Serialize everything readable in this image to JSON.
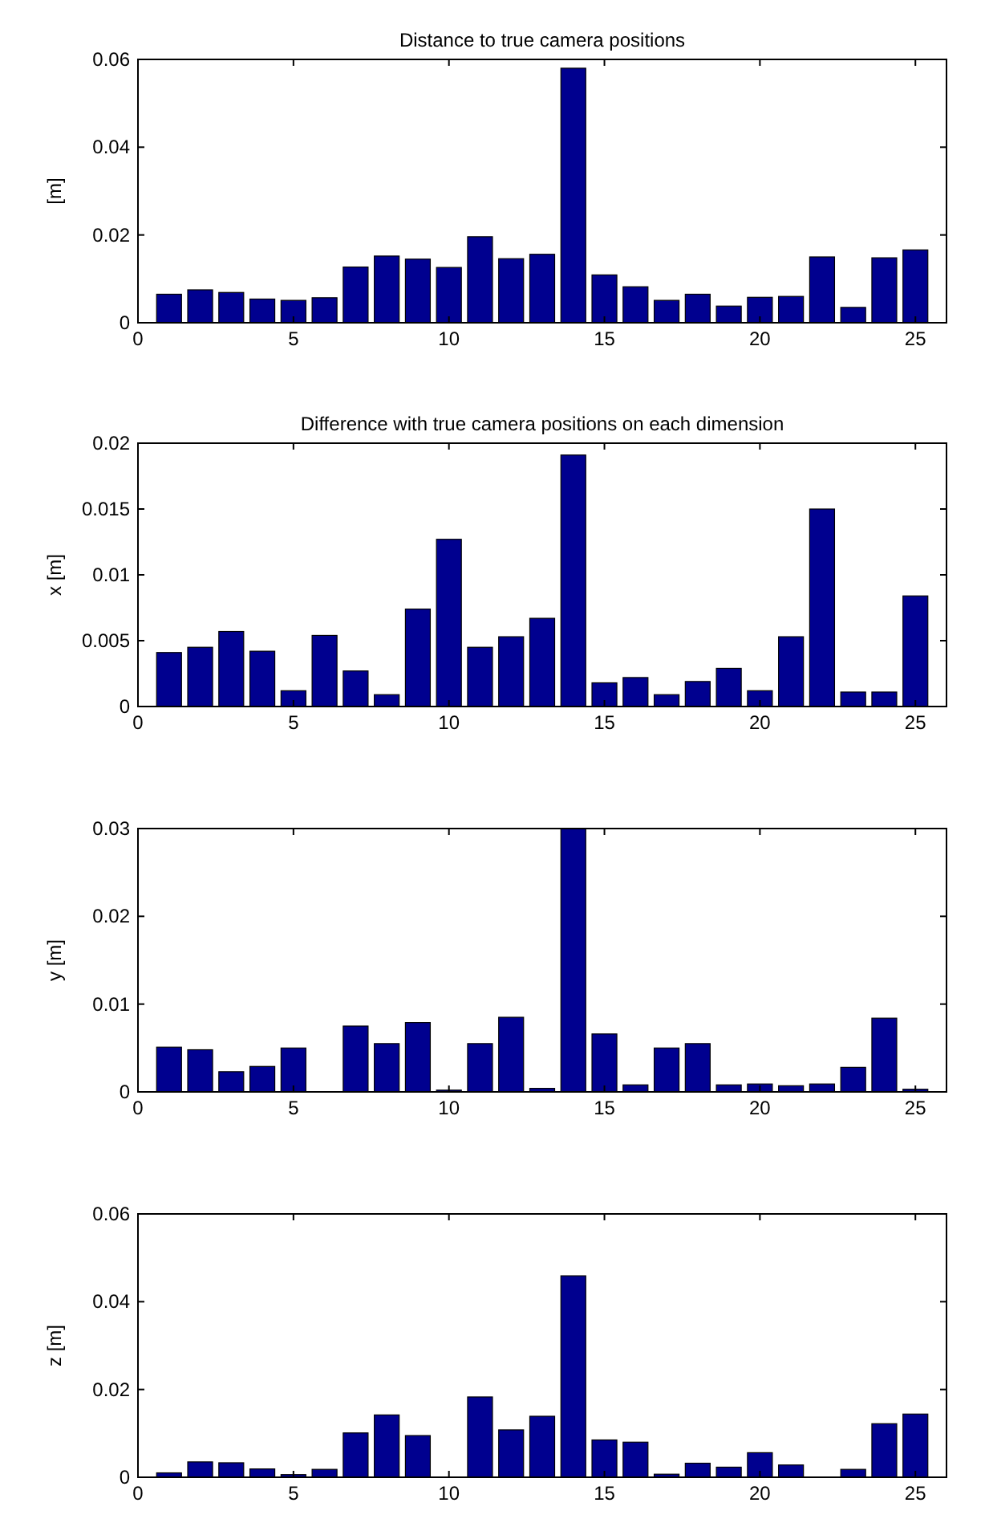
{
  "chart_data": [
    {
      "type": "bar",
      "title": "Distance to true camera positions",
      "ylabel": "[m]",
      "color": "#00008f",
      "x": [
        1,
        2,
        3,
        4,
        5,
        6,
        7,
        8,
        9,
        10,
        11,
        12,
        13,
        14,
        15,
        16,
        17,
        18,
        19,
        20,
        21,
        22,
        23,
        24,
        25
      ],
      "xlim": [
        0,
        26
      ],
      "xticks": [
        0,
        5,
        10,
        15,
        20,
        25
      ],
      "ylim": [
        0,
        0.06
      ],
      "yticks": [
        0,
        0.02,
        0.04,
        0.06
      ],
      "grid": false,
      "legend": false,
      "values": [
        0.0065,
        0.0075,
        0.0069,
        0.0054,
        0.0051,
        0.0057,
        0.0127,
        0.0152,
        0.0145,
        0.0126,
        0.0196,
        0.0146,
        0.0156,
        0.058,
        0.0109,
        0.0082,
        0.0051,
        0.0065,
        0.0038,
        0.0058,
        0.006,
        0.015,
        0.0035,
        0.0148,
        0.0166
      ]
    },
    {
      "type": "bar",
      "title": "Difference with true camera positions on each dimension",
      "ylabel": "x [m]",
      "color": "#00008f",
      "x": [
        1,
        2,
        3,
        4,
        5,
        6,
        7,
        8,
        9,
        10,
        11,
        12,
        13,
        14,
        15,
        16,
        17,
        18,
        19,
        20,
        21,
        22,
        23,
        24,
        25
      ],
      "xlim": [
        0,
        26
      ],
      "xticks": [
        0,
        5,
        10,
        15,
        20,
        25
      ],
      "ylim": [
        0,
        0.02
      ],
      "yticks": [
        0,
        0.005,
        0.01,
        0.015,
        0.02
      ],
      "grid": false,
      "legend": false,
      "values": [
        0.0041,
        0.0045,
        0.0057,
        0.0042,
        0.0012,
        0.0054,
        0.0027,
        0.0009,
        0.0074,
        0.0127,
        0.0045,
        0.0053,
        0.0067,
        0.0191,
        0.0018,
        0.0022,
        0.0009,
        0.0019,
        0.0029,
        0.0012,
        0.0053,
        0.015,
        0.0011,
        0.0011,
        0.0084
      ]
    },
    {
      "type": "bar",
      "ylabel": "y [m]",
      "color": "#00008f",
      "x": [
        1,
        2,
        3,
        4,
        5,
        6,
        7,
        8,
        9,
        10,
        11,
        12,
        13,
        14,
        15,
        16,
        17,
        18,
        19,
        20,
        21,
        22,
        23,
        24,
        25
      ],
      "xlim": [
        0,
        26
      ],
      "xticks": [
        0,
        5,
        10,
        15,
        20,
        25
      ],
      "ylim": [
        0,
        0.03
      ],
      "yticks": [
        0,
        0.01,
        0.02,
        0.03
      ],
      "grid": false,
      "legend": false,
      "values": [
        0.0051,
        0.0048,
        0.0023,
        0.0029,
        0.005,
        0,
        0.0075,
        0.0055,
        0.0079,
        0.0002,
        0.0055,
        0.0085,
        0.0004,
        0.03,
        0.0066,
        0.0008,
        0.005,
        0.0055,
        0.0008,
        0.0009,
        0.0007,
        0.0009,
        0.0028,
        0.0084,
        0.0003
      ]
    },
    {
      "type": "bar",
      "ylabel": "z [m]",
      "color": "#00008f",
      "x": [
        1,
        2,
        3,
        4,
        5,
        6,
        7,
        8,
        9,
        10,
        11,
        12,
        13,
        14,
        15,
        16,
        17,
        18,
        19,
        20,
        21,
        22,
        23,
        24,
        25
      ],
      "xlim": [
        0,
        26
      ],
      "xticks": [
        0,
        5,
        10,
        15,
        20,
        25
      ],
      "ylim": [
        0,
        0.06
      ],
      "yticks": [
        0,
        0.02,
        0.04,
        0.06
      ],
      "grid": false,
      "legend": false,
      "values": [
        0.001,
        0.0035,
        0.0033,
        0.0019,
        0.0006,
        0.0018,
        0.0101,
        0.0142,
        0.0095,
        0,
        0.0183,
        0.0108,
        0.0139,
        0.0459,
        0.0085,
        0.008,
        0.0007,
        0.0032,
        0.0023,
        0.0056,
        0.0028,
        0,
        0.0018,
        0.0122,
        0.0144
      ]
    }
  ]
}
